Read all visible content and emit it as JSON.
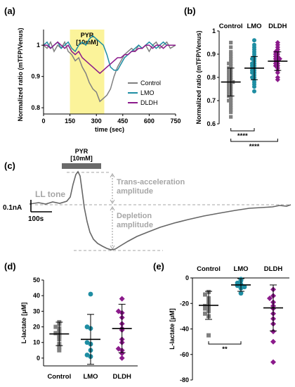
{
  "panel_labels": {
    "a": "(a)",
    "b": "(b)",
    "c": "(c)",
    "d": "(d)",
    "e": "(e)"
  },
  "colors": {
    "control": "#808080",
    "lmo": "#1f8ea3",
    "dldh": "#8b1a8b",
    "pyr_band": "#fbf39a",
    "annot": "#a6a6a6"
  },
  "chart_data": [
    {
      "id": "a",
      "type": "line",
      "xlabel": "time (sec)",
      "ylabel": "Normalized ratio (mTFP/Venus)",
      "xlim": [
        0,
        750
      ],
      "ylim": [
        0.78,
        1.05
      ],
      "xticks": [
        0,
        150,
        300,
        450,
        600,
        750
      ],
      "yticks": [
        0.8,
        0.9,
        1.0
      ],
      "shaded_region": {
        "x": [
          150,
          345
        ],
        "label_line1": "PYR",
        "label_line2": "[10mM]"
      },
      "legend_position": "bottom-right",
      "series": [
        {
          "name": "Control",
          "color": "#808080",
          "x": [
            0,
            20,
            40,
            60,
            80,
            100,
            120,
            140,
            160,
            180,
            200,
            220,
            240,
            260,
            280,
            300,
            320,
            340,
            360,
            380,
            400,
            420,
            440,
            460,
            480,
            500,
            520,
            540,
            560,
            580,
            600,
            620,
            640,
            660,
            680,
            700,
            720,
            750
          ],
          "y": [
            1.0,
            0.99,
            1.01,
            0.98,
            1.0,
            0.99,
            1.01,
            0.98,
            0.97,
            0.95,
            0.96,
            0.93,
            0.91,
            0.88,
            0.86,
            0.85,
            0.82,
            0.83,
            0.84,
            0.86,
            0.9,
            0.93,
            0.95,
            0.97,
            0.98,
            0.99,
            0.98,
            1.0,
            0.99,
            1.0,
            0.98,
            1.0,
            1.01,
            0.99,
            1.0,
            1.01,
            0.99,
            1.0
          ]
        },
        {
          "name": "LMO",
          "color": "#1f8ea3",
          "x": [
            0,
            20,
            40,
            60,
            80,
            100,
            120,
            140,
            160,
            180,
            200,
            220,
            240,
            260,
            280,
            300,
            320,
            340,
            360,
            380,
            400,
            420,
            440,
            460,
            480,
            500,
            520,
            540,
            560,
            580,
            600,
            620,
            640,
            660,
            680,
            700,
            720,
            750
          ],
          "y": [
            1.0,
            1.01,
            0.99,
            1.0,
            1.01,
            0.99,
            1.0,
            1.01,
            0.99,
            0.98,
            1.0,
            1.01,
            1.0,
            1.02,
            1.03,
            1.02,
            1.01,
            1.0,
            0.97,
            0.93,
            0.92,
            0.92,
            0.94,
            0.96,
            0.97,
            0.98,
            0.99,
            1.0,
            0.99,
            1.0,
            1.01,
            1.0,
            0.99,
            1.0,
            1.01,
            1.0,
            1.0,
            1.0
          ]
        },
        {
          "name": "DLDH",
          "color": "#8b1a8b",
          "x": [
            0,
            20,
            40,
            60,
            80,
            100,
            120,
            140,
            160,
            180,
            200,
            220,
            240,
            260,
            280,
            300,
            320,
            340,
            360,
            380,
            400,
            420,
            440,
            460,
            480,
            500,
            520,
            540,
            560,
            580,
            600,
            620,
            640,
            660,
            680,
            700,
            720,
            750
          ],
          "y": [
            1.0,
            1.0,
            0.99,
            1.0,
            1.01,
            1.0,
            0.99,
            1.0,
            0.98,
            0.97,
            0.98,
            0.96,
            0.95,
            0.94,
            0.93,
            0.92,
            0.91,
            0.92,
            0.93,
            0.94,
            0.95,
            0.96,
            0.96,
            0.97,
            0.97,
            0.98,
            0.98,
            0.99,
            0.99,
            1.0,
            1.0,
            0.99,
            1.0,
            1.0,
            0.99,
            1.0,
            1.0,
            1.0
          ]
        }
      ]
    },
    {
      "id": "b",
      "type": "scatter",
      "ylabel": "Normalized ratio (mTFP/Venus)",
      "ylim": [
        0.6,
        1.0
      ],
      "yticks": [
        0.6,
        0.7,
        0.8,
        0.9,
        1.0
      ],
      "categories": [
        "Control",
        "LMO",
        "DLDH"
      ],
      "means": [
        0.78,
        0.84,
        0.87
      ],
      "sd": [
        0.06,
        0.05,
        0.04
      ],
      "points": [
        [
          0.63,
          0.65,
          0.66,
          0.67,
          0.68,
          0.69,
          0.7,
          0.7,
          0.71,
          0.72,
          0.72,
          0.73,
          0.73,
          0.74,
          0.74,
          0.75,
          0.75,
          0.76,
          0.76,
          0.77,
          0.77,
          0.78,
          0.78,
          0.78,
          0.79,
          0.79,
          0.8,
          0.8,
          0.81,
          0.81,
          0.82,
          0.82,
          0.83,
          0.83,
          0.84,
          0.84,
          0.85,
          0.86,
          0.86,
          0.87,
          0.88,
          0.89,
          0.9,
          0.91,
          0.93,
          0.95
        ],
        [
          0.74,
          0.76,
          0.77,
          0.78,
          0.79,
          0.8,
          0.8,
          0.81,
          0.82,
          0.82,
          0.83,
          0.83,
          0.84,
          0.84,
          0.85,
          0.85,
          0.86,
          0.86,
          0.87,
          0.88,
          0.88,
          0.89,
          0.9,
          0.91,
          0.92,
          0.93,
          0.94,
          0.96
        ],
        [
          0.79,
          0.8,
          0.82,
          0.83,
          0.84,
          0.85,
          0.85,
          0.86,
          0.86,
          0.87,
          0.87,
          0.88,
          0.88,
          0.88,
          0.89,
          0.89,
          0.9,
          0.9,
          0.91,
          0.91,
          0.92,
          0.93,
          0.94,
          0.95
        ]
      ],
      "significance": [
        {
          "pair": [
            "Control",
            "LMO"
          ],
          "label": "****"
        },
        {
          "pair": [
            "Control",
            "DLDH"
          ],
          "label": "****"
        }
      ]
    },
    {
      "id": "d",
      "type": "scatter",
      "ylabel": "L-lactate [μM]",
      "ylim": [
        -5,
        50
      ],
      "yticks": [
        0,
        10,
        20,
        30,
        40,
        50
      ],
      "categories": [
        "Control",
        "LMO",
        "DLDH"
      ],
      "means": [
        15.5,
        12,
        19
      ],
      "sd": [
        7.5,
        16,
        15.5
      ],
      "points": [
        [
          5,
          7,
          9,
          12,
          14,
          15,
          16,
          17,
          19,
          20,
          22,
          23
        ],
        [
          1,
          2,
          5,
          9,
          10,
          19,
          20,
          41
        ],
        [
          0,
          3,
          5,
          6,
          10,
          12,
          18,
          19,
          22,
          26,
          29,
          30,
          38
        ]
      ]
    },
    {
      "id": "e",
      "type": "scatter",
      "ylabel": "L-lactate [μM]",
      "ylim": [
        -80,
        0
      ],
      "yticks": [
        -80,
        -60,
        -40,
        -20,
        0
      ],
      "categories": [
        "Control",
        "LMO",
        "DLDH"
      ],
      "means": [
        -21.5,
        -5.5,
        -23.5
      ],
      "sd": [
        11,
        5,
        18
      ],
      "points": [
        [
          -11,
          -13,
          -16,
          -19,
          -20,
          -22,
          -23,
          -24,
          -26,
          -28,
          -30,
          -45
        ],
        [
          -1,
          -2,
          -4,
          -5,
          -6,
          -7,
          -8,
          -12
        ],
        [
          -9,
          -14,
          -16,
          -19,
          -22,
          -24,
          -28,
          -32,
          -36,
          -42,
          -50,
          -66
        ]
      ],
      "significance": [
        {
          "pair": [
            "Control",
            "LMO"
          ],
          "label": "**"
        }
      ]
    }
  ],
  "trace": {
    "pyr_label_line1": "PYR",
    "pyr_label_line2": "[10mM]",
    "ll_tone_label": "LL tone",
    "scale_y_label": "0.1nA",
    "scale_x_label": "100s",
    "trans_acceleration_line1": "Trans-acceleration",
    "trans_acceleration_line2": "amplitude",
    "depletion_line1": "Depletion",
    "depletion_line2": "amplitude"
  }
}
